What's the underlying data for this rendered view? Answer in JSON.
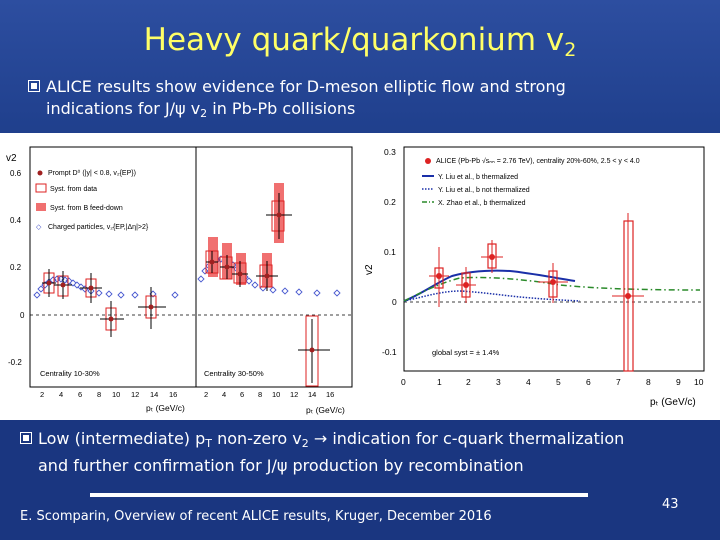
{
  "title": {
    "main": "Heavy quark/quarkonium v",
    "sub": "2"
  },
  "bullet1": {
    "line1": "ALICE results show evidence for D-meson elliptic flow and strong",
    "line2a": "indications for J/ψ v",
    "line2sub": "2",
    "line2b": " in Pb-Pb collisions"
  },
  "bullet2": {
    "a": "Low (intermediate) p",
    "a_sub": "T",
    "b": " non-zero v",
    "b_sub": "2",
    "c": " → indication for c-quark thermalization",
    "line2": "and further confirmation for J/ψ production by recombination"
  },
  "footer": "E. Scomparin, Overview of recent ALICE results, Kruger, December 2016",
  "page_number": "43",
  "left_plot": {
    "ylabel": "v2",
    "yticks": [
      "0.6",
      "0.4",
      "0.2",
      "0",
      "-0.2"
    ],
    "legend": [
      "Prompt D⁰ (|y| < 0.8, v₂{EP})",
      "Syst. from data",
      "Syst. from B feed-down",
      "Charged particles, v₂{EP,|Δη|>2}"
    ],
    "panel1_label": "Centrality 10-30%",
    "panel2_label": "Centrality 30-50%",
    "xticks": [
      "2",
      "4",
      "6",
      "8",
      "10",
      "12",
      "14",
      "16"
    ],
    "xlabel": "pₜ (GeV/c)"
  },
  "right_plot": {
    "legend_header": "ALICE (Pb-Pb √sₙₙ = 2.76 TeV), centrality 20%-60%, 2.5 < y < 4.0",
    "legend": [
      "Y. Liu et al., b thermalized",
      "Y. Liu et al., b not thermalized",
      "X. Zhao et al., b thermalized"
    ],
    "yticks": [
      "0.3",
      "0.2",
      "0.1",
      "0",
      "-0.1"
    ],
    "xticks": [
      "0",
      "1",
      "2",
      "3",
      "4",
      "5",
      "6",
      "7",
      "8",
      "9",
      "10"
    ],
    "ylabel": "v2",
    "xlabel": "pₜ (GeV/c)",
    "global_syst": "global syst = ± 1.4%"
  },
  "colors": {
    "title": "#ffff66",
    "background": "#1f3f8c",
    "data_red": "#dd2222",
    "model_blue": "#1a2fa8",
    "model_green": "#2a8a2a"
  }
}
